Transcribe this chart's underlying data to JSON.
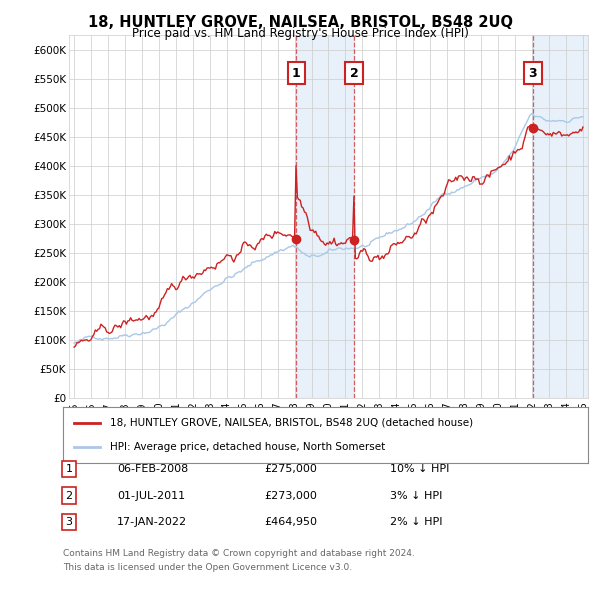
{
  "title": "18, HUNTLEY GROVE, NAILSEA, BRISTOL, BS48 2UQ",
  "subtitle": "Price paid vs. HM Land Registry's House Price Index (HPI)",
  "hpi_color": "#aac8e8",
  "price_color": "#cc2222",
  "background_color": "#ffffff",
  "grid_color": "#cccccc",
  "shade_color": "#cce0f5",
  "ylim": [
    0,
    625000
  ],
  "yticks": [
    0,
    50000,
    100000,
    150000,
    200000,
    250000,
    300000,
    350000,
    400000,
    450000,
    500000,
    550000,
    600000
  ],
  "ytick_labels": [
    "£0",
    "£50K",
    "£100K",
    "£150K",
    "£200K",
    "£250K",
    "£300K",
    "£350K",
    "£400K",
    "£450K",
    "£500K",
    "£550K",
    "£600K"
  ],
  "xlim_start": 1994.7,
  "xlim_end": 2025.3,
  "xticks": [
    1995,
    1996,
    1997,
    1998,
    1999,
    2000,
    2001,
    2002,
    2003,
    2004,
    2005,
    2006,
    2007,
    2008,
    2009,
    2010,
    2011,
    2012,
    2013,
    2014,
    2015,
    2016,
    2017,
    2018,
    2019,
    2020,
    2021,
    2022,
    2023,
    2024,
    2025
  ],
  "sales": [
    {
      "num": 1,
      "date": "06-FEB-2008",
      "year": 2008.1,
      "price": 275000,
      "pct": "10%",
      "dir": "↓"
    },
    {
      "num": 2,
      "date": "01-JUL-2011",
      "year": 2011.5,
      "price": 273000,
      "pct": "3%",
      "dir": "↓"
    },
    {
      "num": 3,
      "date": "17-JAN-2022",
      "year": 2022.05,
      "price": 464950,
      "pct": "2%",
      "dir": "↓"
    }
  ],
  "legend_line1": "18, HUNTLEY GROVE, NAILSEA, BRISTOL, BS48 2UQ (detached house)",
  "legend_line2": "HPI: Average price, detached house, North Somerset",
  "footer1": "Contains HM Land Registry data © Crown copyright and database right 2024.",
  "footer2": "This data is licensed under the Open Government Licence v3.0.",
  "sale_box_color": "#cc2222",
  "sale_number_y": 560000,
  "label_color": "#cc2222"
}
